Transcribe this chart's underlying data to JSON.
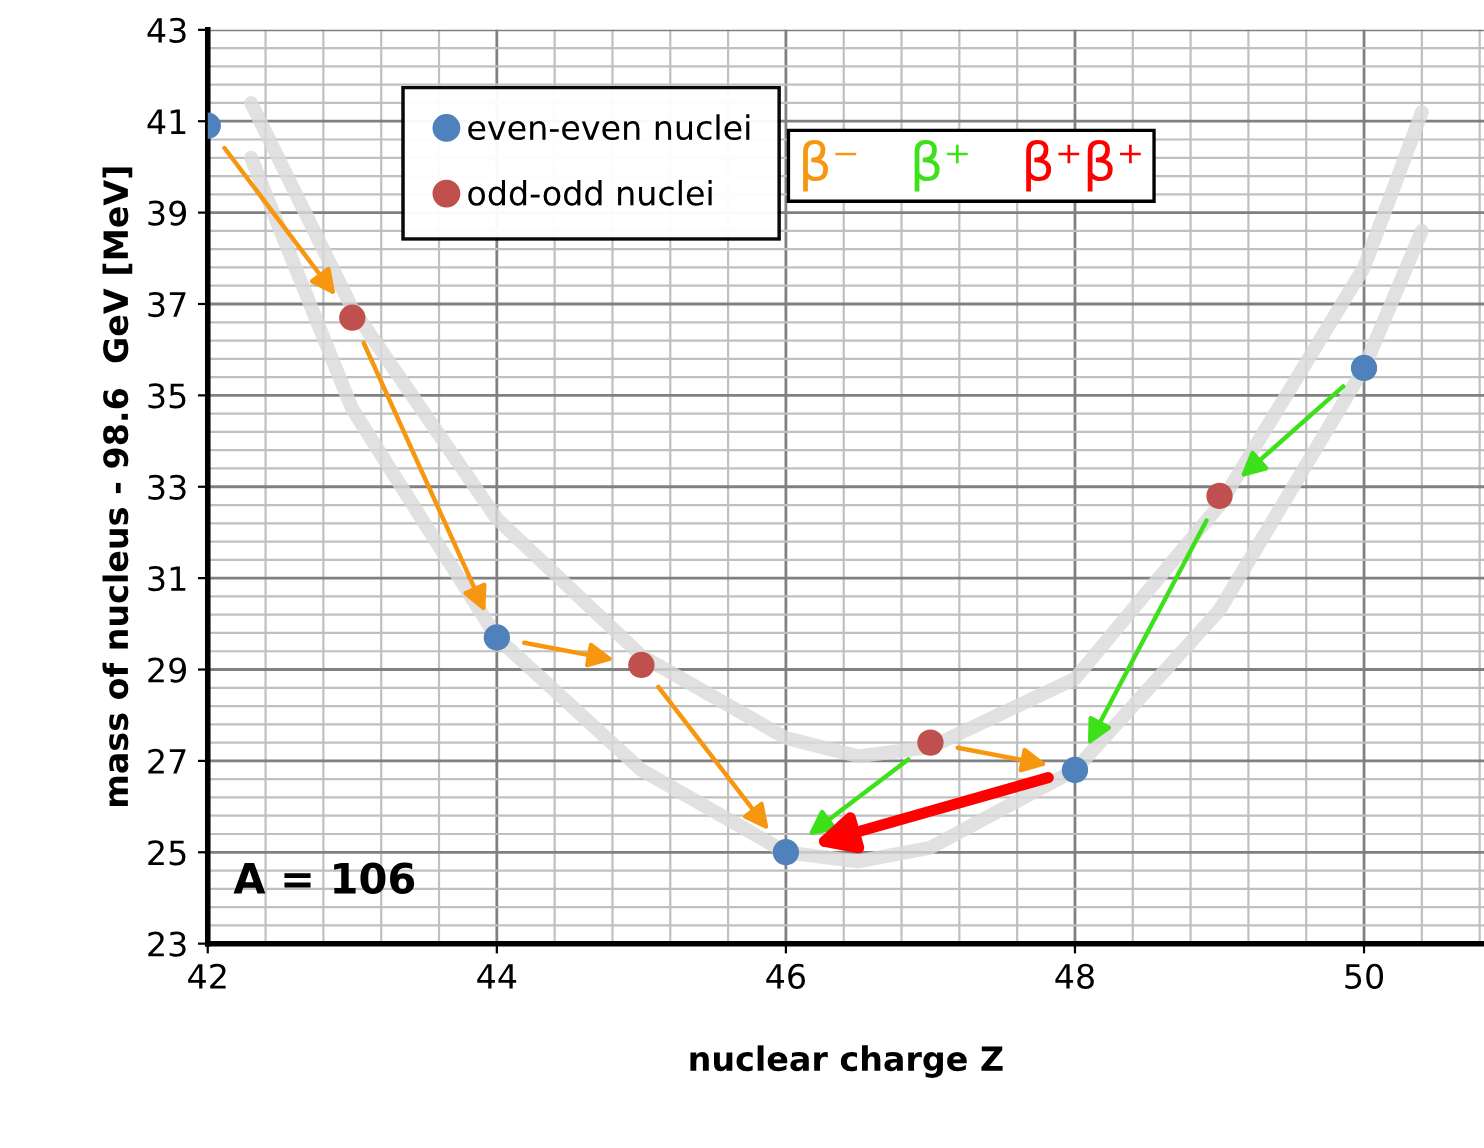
{
  "chart_data": {
    "type": "scatter",
    "xlabel": "nuclear charge Z",
    "ylabel": "mass of nucleus - 98.6  GeV [MeV]",
    "xlim": [
      42,
      50.83
    ],
    "xticks": [
      42,
      44,
      46,
      48,
      50
    ],
    "ylim": [
      23,
      43
    ],
    "yticks": [
      23,
      25,
      27,
      29,
      31,
      33,
      35,
      37,
      39,
      41,
      43
    ],
    "grid": true,
    "legend": "top",
    "annotations": [
      "A = 106",
      "β⁻",
      "β⁺",
      "β⁺β⁺"
    ],
    "series": [
      {
        "type": "line",
        "color": "#d9d9d9",
        "x": [
          42.3,
          43,
          44,
          45,
          46,
          46.5,
          47,
          48,
          49,
          50,
          50.4
        ],
        "values": [
          41.4,
          36.9,
          32.3,
          29.3,
          27.5,
          27.1,
          27.3,
          28.8,
          32.6,
          37.8,
          41.2
        ]
      },
      {
        "type": "line",
        "color": "#d9d9d9",
        "x": [
          42.3,
          43,
          44,
          45,
          46,
          46.5,
          47,
          48,
          49,
          50,
          50.4
        ],
        "values": [
          40.2,
          34.7,
          29.7,
          26.8,
          25.0,
          24.8,
          25.1,
          26.8,
          30.3,
          35.6,
          38.6
        ]
      },
      {
        "name": "even-even nuclei",
        "color": "#4f81bd",
        "x": [
          42,
          44,
          46,
          48,
          50
        ],
        "values": [
          40.9,
          29.7,
          25.0,
          26.8,
          35.6
        ]
      },
      {
        "name": "odd-odd nuclei",
        "color": "#c0504d",
        "x": [
          43,
          45,
          47,
          49
        ],
        "values": [
          36.7,
          29.1,
          27.4,
          32.8
        ]
      }
    ]
  }
}
